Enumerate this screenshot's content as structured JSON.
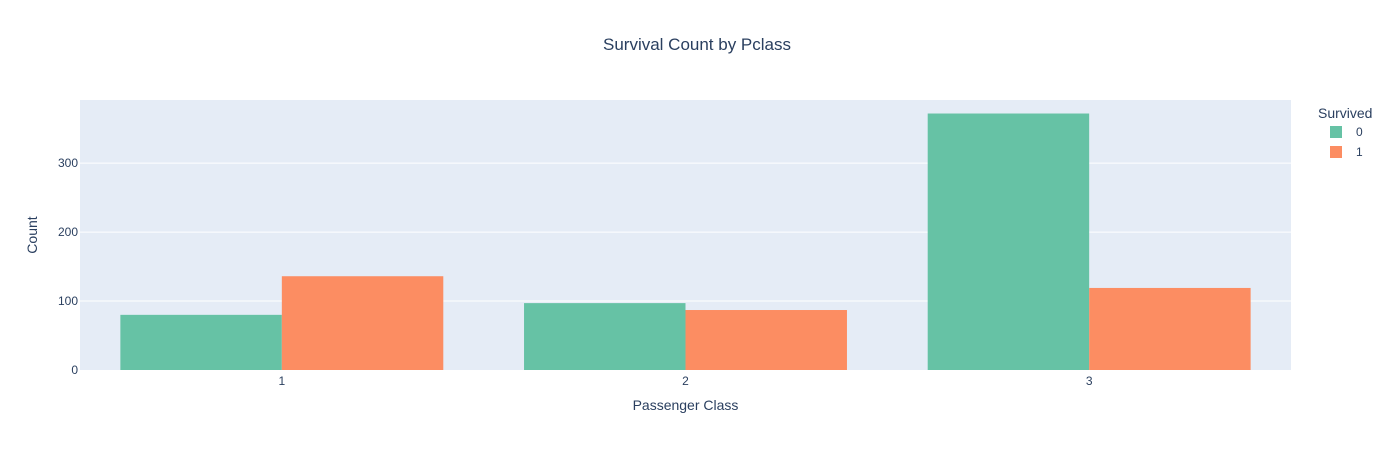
{
  "chart_data": {
    "type": "bar",
    "title": "Survival Count by Pclass",
    "xlabel": "Passenger Class",
    "ylabel": "Count",
    "categories": [
      "1",
      "2",
      "3"
    ],
    "series": [
      {
        "name": "0",
        "values": [
          80,
          97,
          372
        ],
        "color": "#66c2a5"
      },
      {
        "name": "1",
        "values": [
          136,
          87,
          119
        ],
        "color": "#fc8d62"
      }
    ],
    "ylim": [
      0,
      391.6
    ],
    "yticks": [
      0,
      100,
      200,
      300
    ],
    "grid": true,
    "plot_background": "#e5ecf6",
    "legend": {
      "title": "Survived",
      "position": "top-right"
    }
  }
}
